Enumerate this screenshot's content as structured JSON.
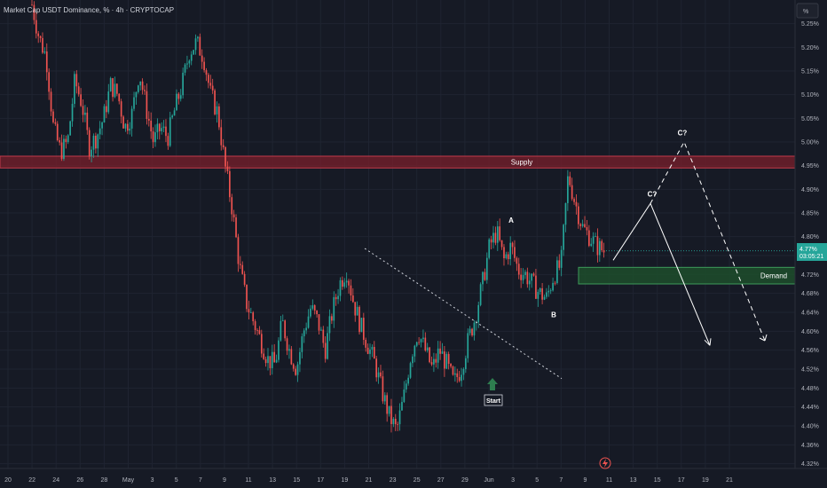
{
  "header": {
    "title": "Market Cap USDT Dominance, % · 4h · CRYPTOCAP",
    "unit_label": "%"
  },
  "price_tag": {
    "price": "4.77%",
    "countdown": "03:05:21",
    "color": "#26a69a"
  },
  "colors": {
    "background": "#161a25",
    "grid": "#1f2431",
    "up": "#26a69a",
    "down": "#ef5350",
    "supply_fill": "#7a1f2b",
    "supply_border": "#c0394a",
    "demand_fill": "#1d4d2c",
    "demand_border": "#3d9a5a",
    "start_arrow": "#2e7d4f"
  },
  "icons": {
    "alert": "lightning-icon",
    "start_marker": "arrow-up-icon"
  },
  "chart_data": {
    "type": "candlestick",
    "title": "Market Cap USDT Dominance, % · 4h · CRYPTOCAP",
    "ylim": [
      4.31,
      5.3
    ],
    "y_ticks": [
      "5.25%",
      "5.20%",
      "5.15%",
      "5.10%",
      "5.05%",
      "5.00%",
      "4.95%",
      "4.90%",
      "4.85%",
      "4.80%",
      "4.76%",
      "4.72%",
      "4.68%",
      "4.64%",
      "4.60%",
      "4.56%",
      "4.52%",
      "4.48%",
      "4.44%",
      "4.40%",
      "4.36%",
      "4.32%"
    ],
    "x_ticks": [
      "20",
      "22",
      "24",
      "26",
      "28",
      "May",
      "3",
      "5",
      "7",
      "9",
      "11",
      "13",
      "15",
      "17",
      "19",
      "21",
      "23",
      "25",
      "27",
      "29",
      "Jun",
      "3",
      "5",
      "7",
      "9",
      "11",
      "13",
      "15",
      "17",
      "19",
      "21"
    ],
    "close_path": [
      5.29,
      5.22,
      5.18,
      5.03,
      4.98,
      5.0,
      5.13,
      5.08,
      4.99,
      5.01,
      5.05,
      5.12,
      5.1,
      5.03,
      5.06,
      5.15,
      5.07,
      5.0,
      5.03,
      5.01,
      5.07,
      5.12,
      5.19,
      5.21,
      5.18,
      5.1,
      5.06,
      4.95,
      4.86,
      4.74,
      4.66,
      4.62,
      4.58,
      4.54,
      4.53,
      4.62,
      4.56,
      4.52,
      4.6,
      4.65,
      4.62,
      4.56,
      4.64,
      4.7,
      4.73,
      4.66,
      4.61,
      4.57,
      4.53,
      4.47,
      4.42,
      4.39,
      4.46,
      4.55,
      4.6,
      4.56,
      4.52,
      4.56,
      4.53,
      4.49,
      4.52,
      4.58,
      4.63,
      4.7,
      4.78,
      4.81,
      4.75,
      4.78,
      4.73,
      4.72,
      4.7,
      4.68,
      4.67,
      4.72,
      4.74,
      4.93,
      4.87,
      4.82,
      4.8,
      4.78,
      4.77
    ],
    "supply": {
      "label": "Supply",
      "y_top": 4.97,
      "y_bottom": 4.945
    },
    "demand": {
      "label": "Demand",
      "y_top": 4.735,
      "y_bottom": 4.7
    },
    "annotations": [
      {
        "label": "A",
        "value": 4.835
      },
      {
        "label": "B",
        "value": 4.635
      },
      {
        "label": "C?",
        "value": 4.89
      },
      {
        "label": "C?",
        "value": 5.02
      },
      {
        "label": "Start",
        "value": 4.425
      }
    ],
    "downtrend_line": {
      "start": 4.775,
      "end": 4.5
    },
    "projection_solid": [
      4.75,
      4.87,
      4.57
    ],
    "projection_dashed": [
      4.87,
      5.0,
      4.58
    ],
    "current_price": 4.77,
    "grid": true
  }
}
